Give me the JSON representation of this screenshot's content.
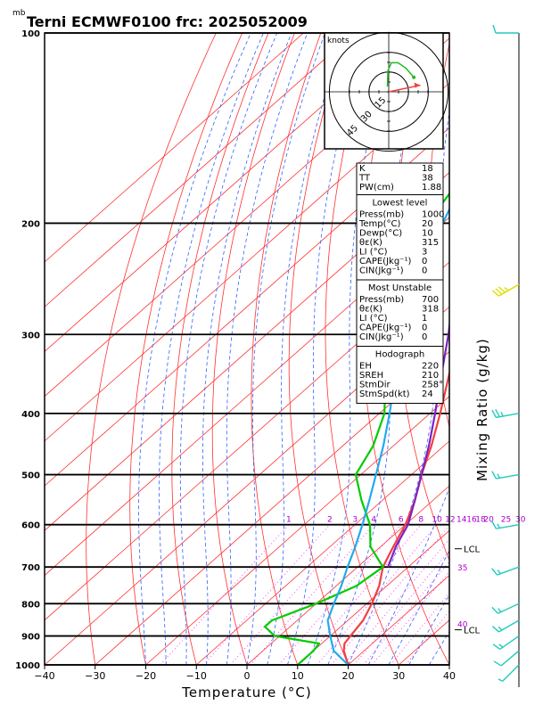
{
  "chart_data": {
    "type": "line",
    "title": "Terni ECMWF0100  frc: 2025052009",
    "y_unit": "mb",
    "xlabel": "Temperature (°C)",
    "right_label": "Mixing Ratio (g/kg)",
    "xlim": [
      -40,
      40
    ],
    "ylim": [
      1000,
      100
    ],
    "y_scale": "log",
    "x_ticks": [
      -40,
      -30,
      -20,
      -10,
      0,
      10,
      20,
      30,
      40
    ],
    "pressure_levels": [
      100,
      200,
      300,
      400,
      500,
      600,
      700,
      800,
      900,
      1000
    ],
    "isotherm_spacing": 10,
    "dry_adiabats_theta": [
      -30,
      -20,
      -10,
      0,
      10,
      20,
      30,
      40,
      50,
      60,
      70,
      80,
      90,
      100,
      110,
      120,
      130,
      140,
      150,
      160,
      170,
      180,
      190,
      200
    ],
    "moist_adiabats_thetaw": [
      -20,
      -16,
      -12,
      -8,
      -4,
      0,
      4,
      8,
      12,
      16,
      20,
      24,
      28,
      32,
      36,
      40
    ],
    "mixing_ratio_lines": [
      {
        "w": 1,
        "label": "1"
      },
      {
        "w": 2,
        "label": "2"
      },
      {
        "w": 3,
        "label": "3"
      },
      {
        "w": 4,
        "label": "4"
      },
      {
        "w": 6,
        "label": "6"
      },
      {
        "w": 8,
        "label": "8"
      },
      {
        "w": 10,
        "label": "10"
      },
      {
        "w": 12,
        "label": "12"
      },
      {
        "w": 14,
        "label": "14"
      },
      {
        "w": 16,
        "label": "16"
      },
      {
        "w": 18,
        "label": "18"
      },
      {
        "w": 20,
        "label": "20"
      },
      {
        "w": 25,
        "label": "25"
      },
      {
        "w": 30,
        "label": "30"
      }
    ],
    "right_theta_labels": [
      {
        "t": "35",
        "p": 700
      },
      {
        "t": "40",
        "p": 860
      }
    ],
    "series": [
      {
        "role": "temperature",
        "color": "#f04040",
        "points": [
          [
            1000,
            20
          ],
          [
            950,
            16
          ],
          [
            925,
            14.5
          ],
          [
            900,
            14
          ],
          [
            850,
            13
          ],
          [
            800,
            11
          ],
          [
            750,
            8.5
          ],
          [
            700,
            5
          ],
          [
            650,
            2.5
          ],
          [
            600,
            0
          ],
          [
            550,
            -3.5
          ],
          [
            500,
            -8
          ],
          [
            450,
            -12.5
          ],
          [
            400,
            -18
          ],
          [
            350,
            -24.5
          ],
          [
            300,
            -32
          ],
          [
            270,
            -36.5
          ],
          [
            250,
            -37
          ],
          [
            220,
            -31
          ],
          [
            200,
            -27.5
          ],
          [
            150,
            -18
          ],
          [
            125,
            -12
          ],
          [
            100,
            -6
          ]
        ]
      },
      {
        "role": "dewpoint",
        "color": "#00cc00",
        "points": [
          [
            1000,
            10
          ],
          [
            950,
            10
          ],
          [
            925,
            9.5
          ],
          [
            900,
            -1
          ],
          [
            870,
            -5
          ],
          [
            850,
            -5
          ],
          [
            800,
            0
          ],
          [
            750,
            4
          ],
          [
            700,
            5
          ],
          [
            650,
            -2
          ],
          [
            600,
            -7
          ],
          [
            550,
            -14
          ],
          [
            500,
            -21
          ],
          [
            450,
            -24
          ],
          [
            400,
            -29
          ],
          [
            350,
            -37
          ],
          [
            300,
            -47
          ],
          [
            250,
            -58
          ],
          [
            200,
            -63
          ],
          [
            150,
            -69
          ],
          [
            100,
            -78
          ]
        ]
      },
      {
        "role": "parcel",
        "color": "#22aaee",
        "points": [
          [
            1000,
            20
          ],
          [
            950,
            14
          ],
          [
            900,
            10
          ],
          [
            850,
            6
          ],
          [
            800,
            3.5
          ],
          [
            750,
            1
          ],
          [
            700,
            -2
          ],
          [
            650,
            -5
          ],
          [
            600,
            -8.5
          ],
          [
            550,
            -12.5
          ],
          [
            500,
            -17
          ],
          [
            450,
            -22
          ],
          [
            400,
            -28
          ],
          [
            350,
            -35
          ],
          [
            300,
            -43
          ],
          [
            250,
            -52
          ],
          [
            200,
            -60
          ],
          [
            150,
            -70
          ],
          [
            120,
            -75
          ],
          [
            100,
            -78
          ]
        ]
      },
      {
        "role": "virtual-temperature",
        "color": "#8020c0",
        "points": [
          [
            700,
            6
          ],
          [
            650,
            3
          ],
          [
            600,
            0.5
          ],
          [
            550,
            -3.5
          ],
          [
            500,
            -8
          ],
          [
            450,
            -13
          ],
          [
            400,
            -19
          ],
          [
            350,
            -26
          ],
          [
            300,
            -34
          ],
          [
            250,
            -44
          ],
          [
            200,
            -53
          ],
          [
            150,
            -62
          ],
          [
            110,
            -68
          ]
        ]
      }
    ],
    "lcl_labels": [
      {
        "text": "LCL",
        "p": 655
      },
      {
        "text": "LCL",
        "p": 880
      }
    ],
    "wind_barbs": [
      {
        "p": 100,
        "dir": 270,
        "spd": 10,
        "color": "#22ccbb"
      },
      {
        "p": 250,
        "dir": 240,
        "spd": 35,
        "color": "#dddd00"
      },
      {
        "p": 400,
        "dir": 260,
        "spd": 25,
        "color": "#22ccbb"
      },
      {
        "p": 500,
        "dir": 260,
        "spd": 15,
        "color": "#22ccbb"
      },
      {
        "p": 600,
        "dir": 260,
        "spd": 15,
        "color": "#22ccbb"
      },
      {
        "p": 700,
        "dir": 250,
        "spd": 15,
        "color": "#22ccbb"
      },
      {
        "p": 800,
        "dir": 245,
        "spd": 15,
        "color": "#22ccbb"
      },
      {
        "p": 850,
        "dir": 240,
        "spd": 15,
        "color": "#22ccbb"
      },
      {
        "p": 900,
        "dir": 235,
        "spd": 15,
        "color": "#22ccbb"
      },
      {
        "p": 950,
        "dir": 230,
        "spd": 10,
        "color": "#22ccbb"
      },
      {
        "p": 1000,
        "dir": 225,
        "spd": 5,
        "color": "#22ccbb"
      }
    ],
    "hodograph": {
      "unit_label": "knots",
      "rings": [
        15,
        30,
        45
      ],
      "ring_labels": [
        "15",
        "30",
        "45"
      ],
      "green_trace": [
        [
          -0.5,
          2
        ],
        [
          -0.3,
          8
        ],
        [
          1,
          11
        ],
        [
          3.5,
          11
        ],
        [
          6.5,
          9
        ],
        [
          9.5,
          5.5
        ]
      ],
      "storm_vector": [
        [
          0,
          0
        ],
        [
          12,
          2.5
        ]
      ]
    },
    "indices": {
      "rows": [
        {
          "k": "K",
          "v": "18"
        },
        {
          "k": "TT",
          "v": "38"
        },
        {
          "k": "PW(cm)",
          "v": "1.88"
        }
      ],
      "lowest_level": {
        "title": "Lowest level",
        "rows": [
          {
            "k": "Press(mb)",
            "v": "1000"
          },
          {
            "k": "Temp(°C)",
            "v": "20"
          },
          {
            "k": "Dewp(°C)",
            "v": "10"
          },
          {
            "k": "θε(K)",
            "v": "315"
          },
          {
            "k": "LI (°C)",
            "v": "3"
          },
          {
            "k": "CAPE(Jkg⁻¹)",
            "v": "0"
          },
          {
            "k": "CIN(Jkg⁻¹)",
            "v": "0"
          }
        ]
      },
      "most_unstable": {
        "title": "Most Unstable",
        "rows": [
          {
            "k": "Press(mb)",
            "v": "700"
          },
          {
            "k": "θε(K)",
            "v": "318"
          },
          {
            "k": "LI (°C)",
            "v": "1"
          },
          {
            "k": "CAPE(Jkg⁻¹)",
            "v": "0"
          },
          {
            "k": "CIN(Jkg⁻¹)",
            "v": "0"
          }
        ]
      },
      "hodograph": {
        "title": "Hodograph",
        "rows": [
          {
            "k": "EH",
            "v": "220"
          },
          {
            "k": "SREH",
            "v": "210"
          },
          {
            "k": "StmDir",
            "v": "258°"
          },
          {
            "k": "StmSpd(kt)",
            "v": "24"
          }
        ]
      }
    },
    "colors": {
      "isotherm": "#ff3030",
      "dry_adiabat": "#ff3030",
      "moist_adiabat": "#3060ff",
      "mixing_ratio": "#ff40ff",
      "isobar": "#000000",
      "frame": "#000000"
    }
  }
}
